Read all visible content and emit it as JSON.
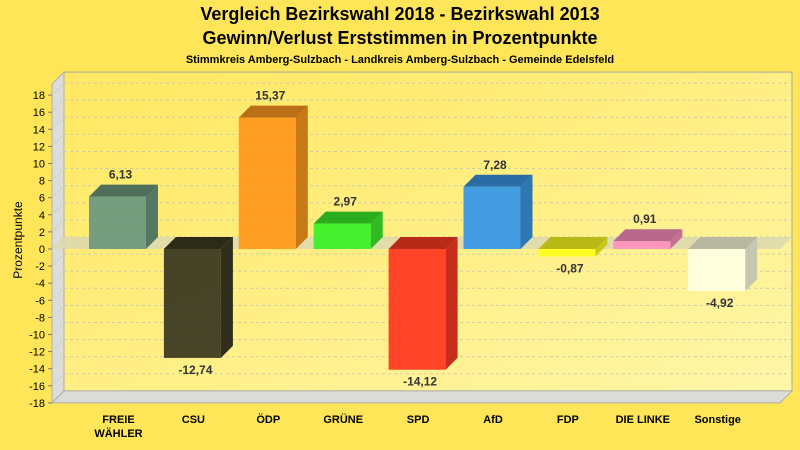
{
  "chart_data": {
    "type": "bar",
    "title": "Vergleich Bezirkswahl 2018 - Bezirkswahl 2013",
    "subtitle": "Gewinn/Verlust Erststimmen in Prozentpunkte",
    "subsubtitle": "Stimmkreis Amberg-Sulzbach - Landkreis Amberg-Sulzbach - Gemeinde Edelsfeld",
    "xlabel": "",
    "ylabel": "Prozentpunkte",
    "ylim": [
      -18,
      18
    ],
    "yticks": [
      18,
      16,
      14,
      12,
      10,
      8,
      6,
      4,
      2,
      0,
      -2,
      -4,
      -6,
      -8,
      -10,
      -12,
      -14,
      -16,
      -18
    ],
    "grid": true,
    "categories": [
      "FREIE\nWÄHLER",
      "CSU",
      "ÖDP",
      "GRÜNE",
      "SPD",
      "AfD",
      "FDP",
      "DIE LINKE",
      "Sonstige"
    ],
    "values": [
      6.13,
      -12.74,
      15.37,
      2.97,
      -14.12,
      7.28,
      -0.87,
      0.91,
      -4.92
    ],
    "value_labels": [
      "6,13",
      "-12,74",
      "15,37",
      "2,97",
      "-14,12",
      "7,28",
      "-0,87",
      "0,91",
      "-4,92"
    ],
    "colors": [
      "#6E9A7E",
      "#3D3A22",
      "#FF9A1E",
      "#3CF02A",
      "#FF3A22",
      "#3A98E6",
      "#FFFF20",
      "#FF90C0",
      "#FFFFE0"
    ]
  }
}
